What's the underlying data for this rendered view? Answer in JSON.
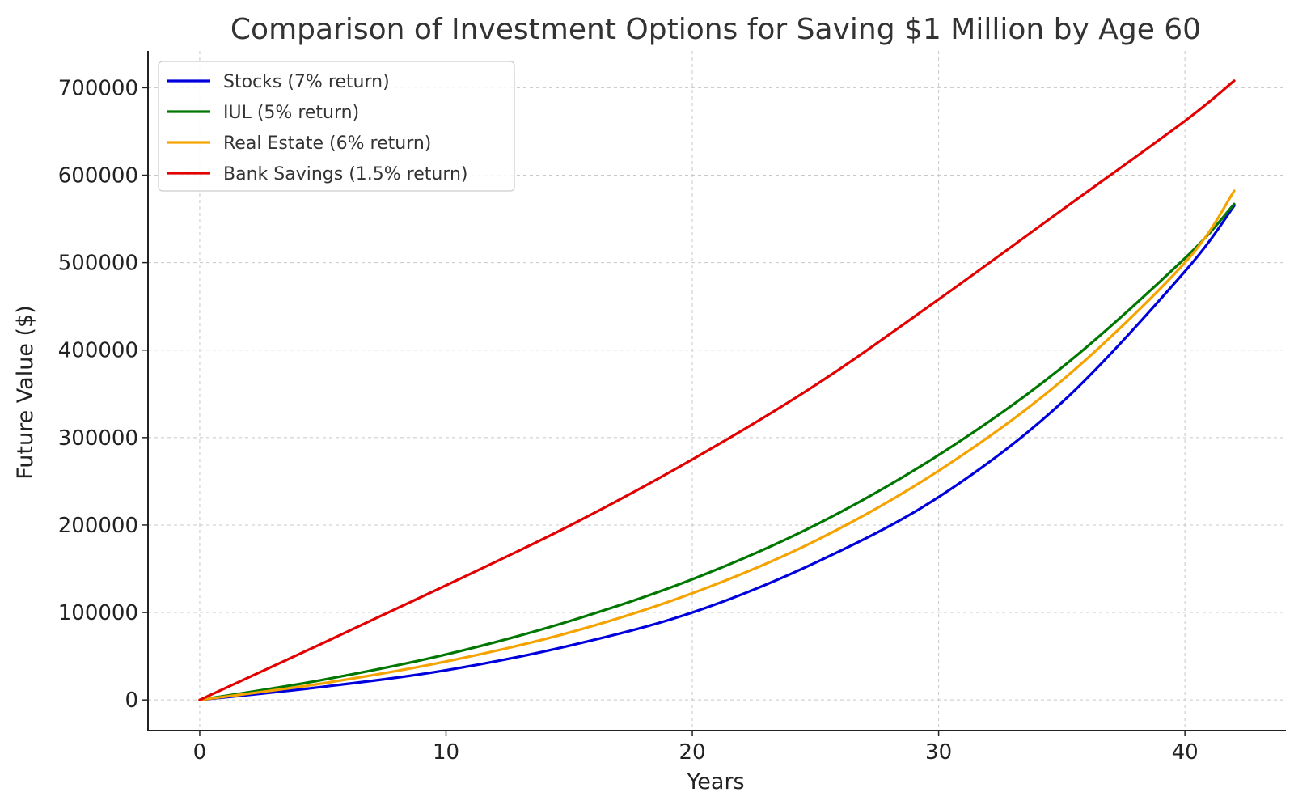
{
  "chart_data": {
    "type": "line",
    "title": "Comparison of Investment Options for Saving $1 Million by Age 60",
    "xlabel": "Years",
    "ylabel": "Future Value ($)",
    "xlim": [
      -2.1,
      44.1
    ],
    "ylim": [
      -35000,
      742000
    ],
    "xticks": [
      0,
      10,
      20,
      30,
      40
    ],
    "yticks": [
      0,
      100000,
      200000,
      300000,
      400000,
      500000,
      600000,
      700000
    ],
    "grid": true,
    "legend_position": "top-left",
    "series": [
      {
        "name": "Stocks (7% return)",
        "color": "#0000dd",
        "x": [
          0,
          5,
          10,
          15,
          20,
          25,
          30,
          35,
          40,
          42
        ],
        "y": [
          0,
          15000,
          34000,
          62000,
          100000,
          157000,
          232000,
          340000,
          490000,
          565000
        ]
      },
      {
        "name": "IUL (5% return)",
        "color": "#007700",
        "x": [
          0,
          5,
          10,
          15,
          20,
          25,
          30,
          35,
          40,
          42
        ],
        "y": [
          0,
          23000,
          52000,
          90000,
          138000,
          200000,
          280000,
          380000,
          505000,
          567000
        ]
      },
      {
        "name": "Real Estate (6% return)",
        "color": "#f5a300",
        "x": [
          0,
          5,
          10,
          15,
          20,
          25,
          30,
          35,
          40,
          42
        ],
        "y": [
          0,
          19000,
          44000,
          77000,
          122000,
          182000,
          262000,
          365000,
          500000,
          582000
        ]
      },
      {
        "name": "Bank Savings (1.5% return)",
        "color": "#e20000",
        "x": [
          0,
          5,
          10,
          15,
          20,
          25,
          30,
          35,
          40,
          42
        ],
        "y": [
          0,
          65000,
          131000,
          199000,
          275000,
          360000,
          458000,
          560000,
          662000,
          708000
        ]
      }
    ]
  }
}
